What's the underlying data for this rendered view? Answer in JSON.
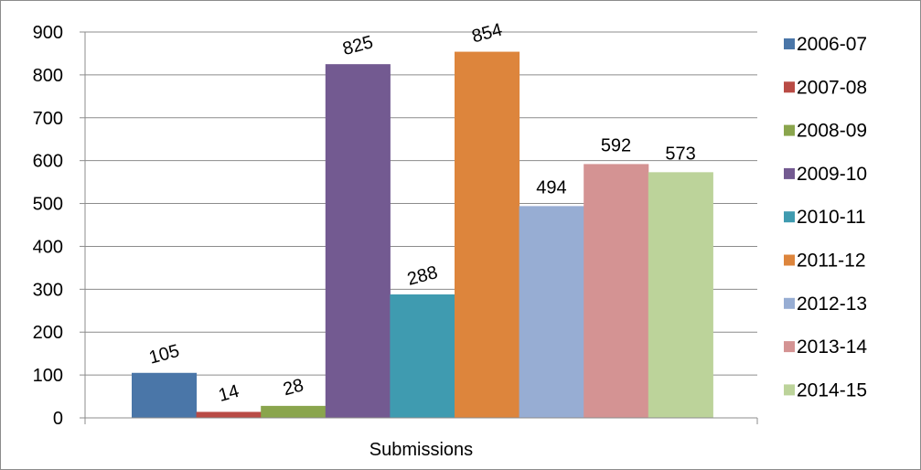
{
  "chart_data": {
    "type": "bar",
    "title": "",
    "xlabel": "",
    "ylabel": "",
    "categories": [
      "Submissions"
    ],
    "series": [
      {
        "name": "2006-07",
        "values": [
          105
        ],
        "color": "#4a76a8",
        "label": "105"
      },
      {
        "name": "2007-08",
        "values": [
          14
        ],
        "color": "#b94b45",
        "label": "14"
      },
      {
        "name": "2008-09",
        "values": [
          28
        ],
        "color": "#8aa54d",
        "label": "28"
      },
      {
        "name": "2009-10",
        "values": [
          825
        ],
        "color": "#735a91",
        "label": "825"
      },
      {
        "name": "2010-11",
        "values": [
          288
        ],
        "color": "#3f9bb0",
        "label": "288"
      },
      {
        "name": "2011-12",
        "values": [
          854
        ],
        "color": "#dd853c",
        "label": "854"
      },
      {
        "name": "2012-13",
        "values": [
          494
        ],
        "color": "#97add3",
        "label": "494"
      },
      {
        "name": "2013-14",
        "values": [
          592
        ],
        "color": "#d49393",
        "label": "592"
      },
      {
        "name": "2014-15",
        "values": [
          573
        ],
        "color": "#bcd39a",
        "label": "573"
      }
    ],
    "ylim": [
      0,
      900
    ],
    "yticks": [
      0,
      100,
      200,
      300,
      400,
      500,
      600,
      700,
      800,
      900
    ],
    "grid": true,
    "legend_position": "right"
  }
}
